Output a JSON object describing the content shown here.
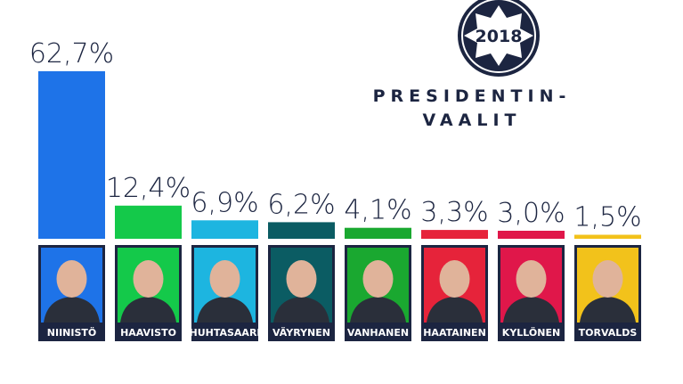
{
  "chart_data": {
    "type": "bar",
    "logo_year": "2018",
    "title_lines": [
      "PRESIDENTIN-",
      "VAALIT"
    ],
    "categories": [
      "NIINISTÖ",
      "HAAVISTO",
      "HUHTASAARI",
      "VÄYRYNEN",
      "VANHANEN",
      "HAATAINEN",
      "KYLLÖNEN",
      "TORVALDS"
    ],
    "values": [
      62.7,
      12.4,
      6.9,
      6.2,
      4.1,
      3.3,
      3.0,
      1.5
    ],
    "value_labels": [
      "62,7%",
      "12,4%",
      "6,9%",
      "6,2%",
      "4,1%",
      "3,3%",
      "3,0%",
      "1,5%"
    ],
    "colors": [
      "#1e73e8",
      "#14c94a",
      "#1db5e0",
      "#0b5c63",
      "#1aa830",
      "#e6233a",
      "#e0174a",
      "#f2c21b"
    ]
  }
}
